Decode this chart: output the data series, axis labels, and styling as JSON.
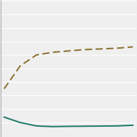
{
  "dashed_line": {
    "x": [
      0,
      1,
      2,
      3,
      4,
      5,
      6,
      7,
      8
    ],
    "y": [
      35,
      52,
      60,
      62,
      63,
      64,
      64.5,
      65,
      66
    ],
    "color": "#8B7030",
    "linewidth": 1.5,
    "dash_on": 5,
    "dash_off": 2.5
  },
  "solid_line": {
    "x": [
      0,
      1,
      2,
      3,
      4,
      5,
      6,
      7,
      8
    ],
    "y": [
      14,
      10,
      7.5,
      7.0,
      7.2,
      7.3,
      7.4,
      7.5,
      8.0
    ],
    "color": "#1E7A6A",
    "linewidth": 1.5
  },
  "ylim": [
    0,
    100
  ],
  "xlim": [
    -0.2,
    8.2
  ],
  "background_color": "#efefef",
  "grid_color": "#ffffff",
  "n_gridlines": 10,
  "left_spine_color": "#aaaaaa",
  "figsize": [
    2.0,
    2.0
  ],
  "dpi": 100
}
